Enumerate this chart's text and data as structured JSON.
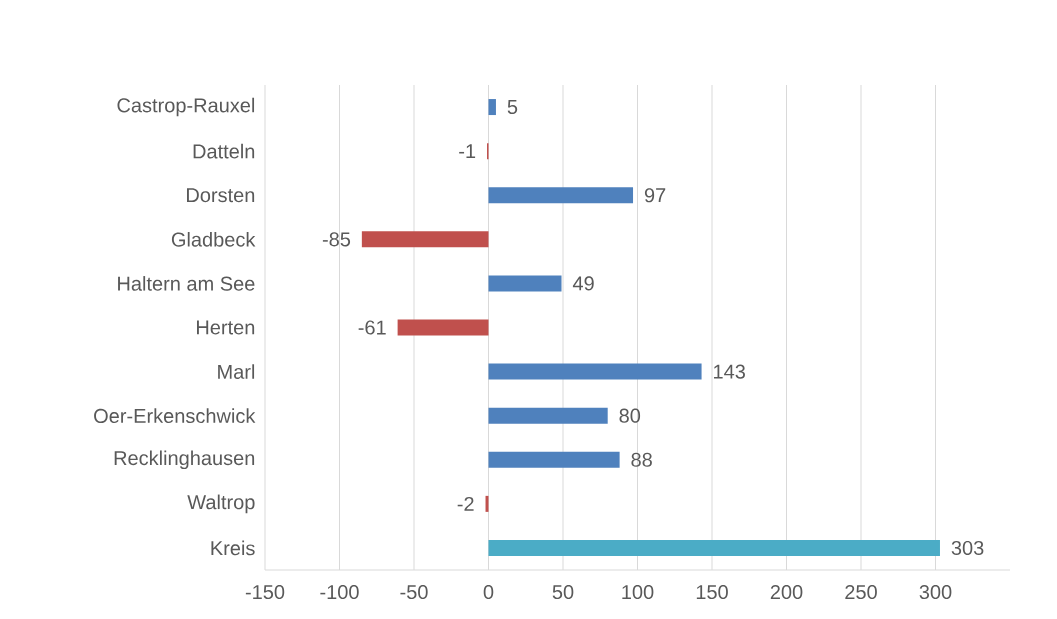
{
  "chart_data": {
    "type": "bar",
    "orientation": "horizontal",
    "categories": [
      "Castrop-Rauxel",
      "Datteln",
      "Dorsten",
      "Gladbeck",
      "Haltern am See",
      "Herten",
      "Marl",
      "Oer-Erkenschwick",
      "Recklinghausen",
      "Waltrop",
      "Kreis"
    ],
    "values": [
      5,
      -1,
      97,
      -85,
      49,
      -61,
      143,
      80,
      88,
      -2,
      303
    ],
    "colors": [
      "#4f81bd",
      "#c0504d",
      "#4f81bd",
      "#c0504d",
      "#4f81bd",
      "#c0504d",
      "#4f81bd",
      "#4f81bd",
      "#4f81bd",
      "#c0504d",
      "#4bacc6"
    ],
    "xlim": [
      -150,
      350
    ],
    "xticks": [
      -150,
      -100,
      -50,
      0,
      50,
      100,
      150,
      200,
      250,
      300
    ],
    "grid": "x",
    "data_labels": true
  }
}
